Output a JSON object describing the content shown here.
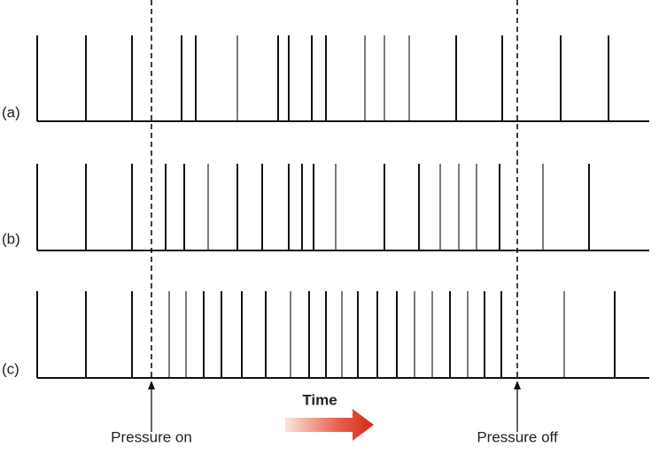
{
  "rows": [
    {
      "label": "(a)"
    },
    {
      "label": "(b)"
    },
    {
      "label": "(c)"
    }
  ],
  "time_label": "Time",
  "markers": [
    {
      "label": "Pressure on"
    },
    {
      "label": "Pressure off"
    }
  ]
}
